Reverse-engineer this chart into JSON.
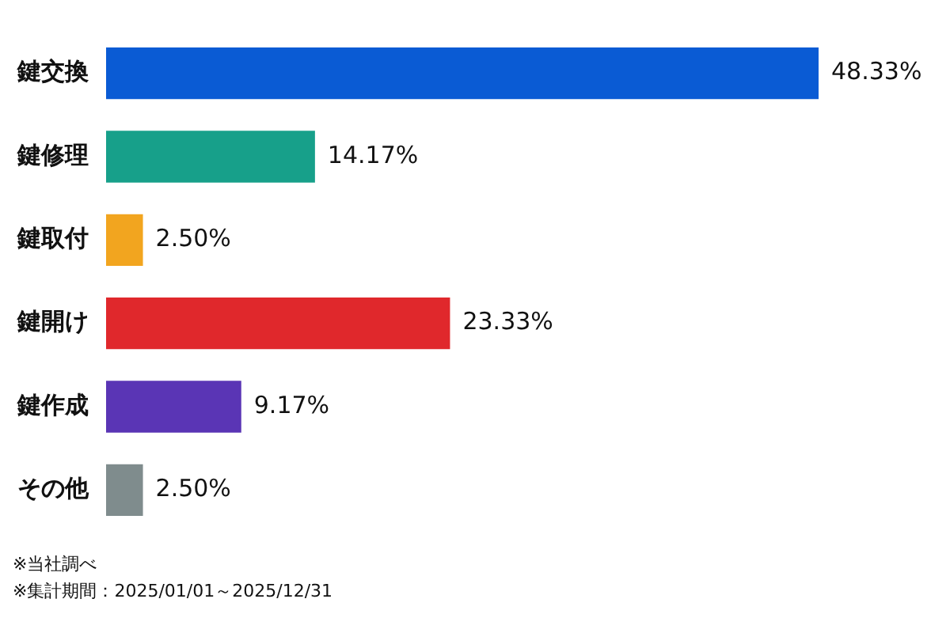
{
  "chart_data": {
    "type": "bar",
    "orientation": "horizontal",
    "categories": [
      "鍵交換",
      "鍵修理",
      "鍵取付",
      "鍵開け",
      "鍵作成",
      "その他"
    ],
    "values": [
      48.33,
      14.17,
      2.5,
      23.33,
      9.17,
      2.5
    ],
    "colors": [
      "#0a5bd4",
      "#17a08a",
      "#f2a51f",
      "#e0282c",
      "#5a35b5",
      "#7f8c8d"
    ],
    "value_labels": [
      "48.33%",
      "14.17%",
      "2.50%",
      "23.33%",
      "9.17%",
      "2.50%"
    ],
    "legend": false,
    "annotations": [
      "※当社調べ",
      "※集計期間：2025/01/01～2025/12/31"
    ]
  }
}
